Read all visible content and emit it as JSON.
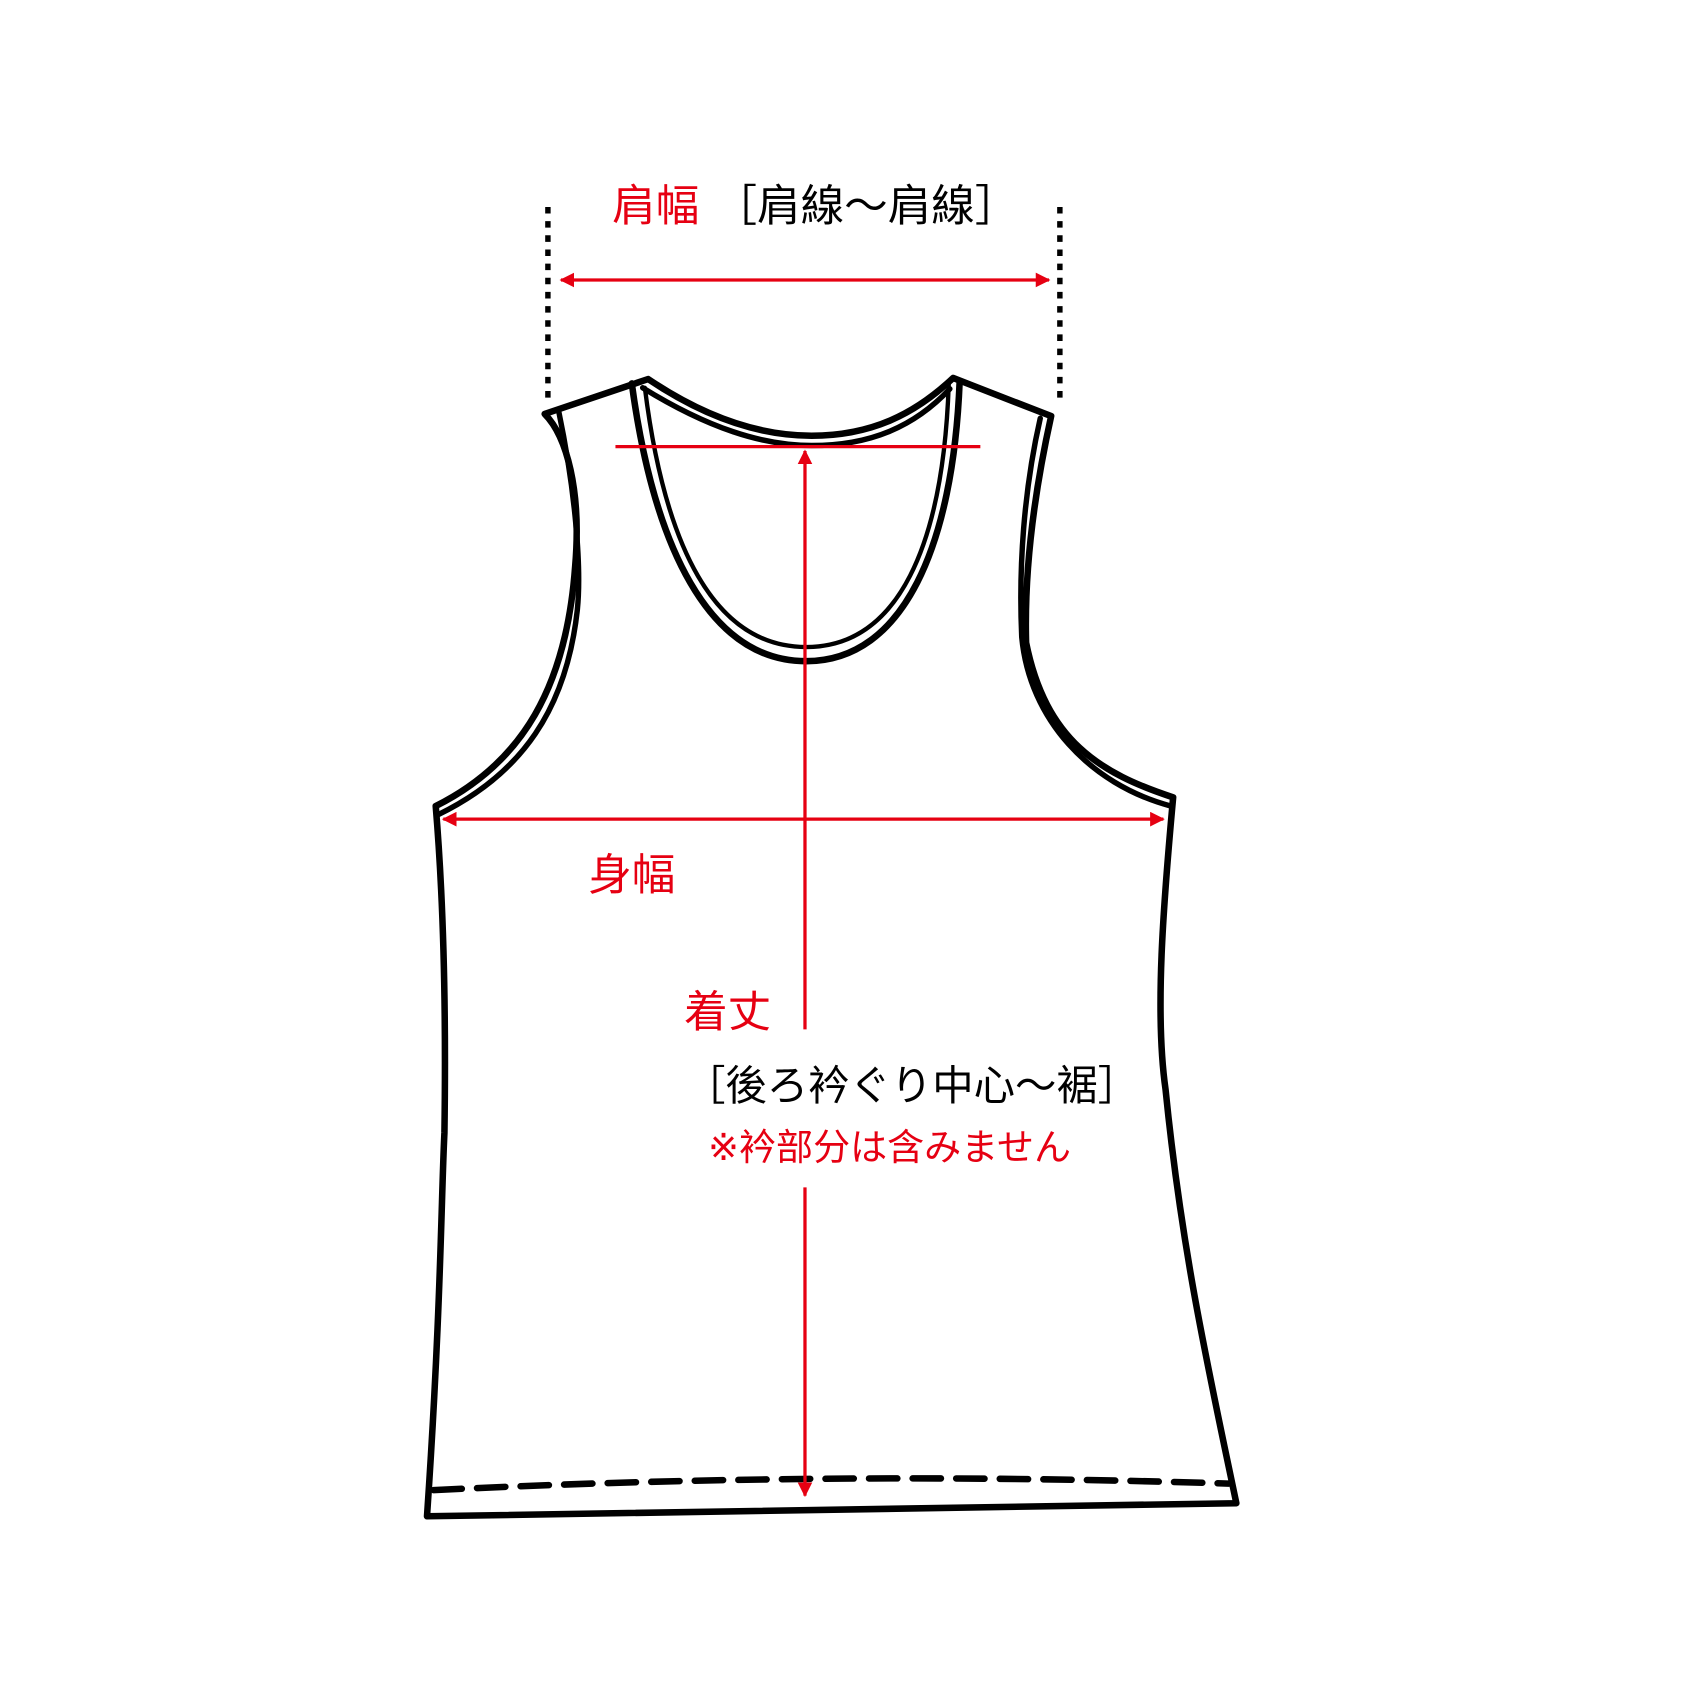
{
  "colors": {
    "accent": "#e60012",
    "outline": "#000000",
    "background": "#ffffff"
  },
  "labels": {
    "shoulder_width": "肩幅",
    "shoulder_width_note": "［肩線〜肩線］",
    "body_width": "身幅",
    "length": "着丈",
    "length_note": "［後ろ衿ぐり中心〜裾］",
    "length_caution": "※衿部分は含みません"
  }
}
